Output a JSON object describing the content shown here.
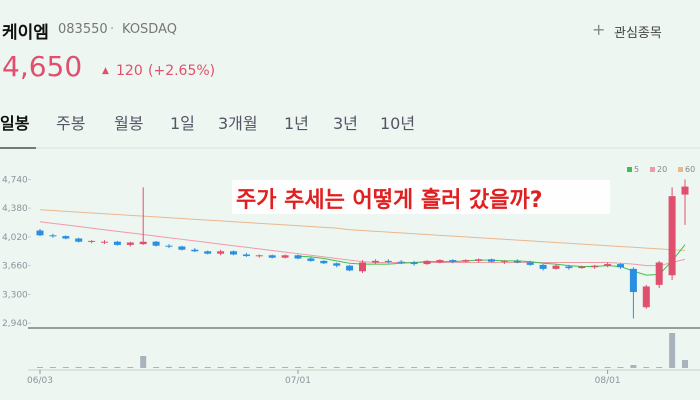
{
  "header": {
    "name": "케이엠",
    "code": "083550",
    "separator": "·",
    "market": "KOSDAQ",
    "watch_button": "관심종목",
    "price": "4,650",
    "change": "120",
    "change_pct": "(+2.65%)"
  },
  "tabs": [
    "일봉",
    "주봉",
    "월봉",
    "1일",
    "3개월",
    "1년",
    "3년",
    "10년"
  ],
  "chart_data": {
    "type": "candlestick",
    "annotation": "주가 추세는 어떻게 흘러 갔을까?",
    "categories": [
      "06/03",
      null,
      null,
      null,
      null,
      null,
      null,
      null,
      null,
      null,
      null,
      null,
      null,
      null,
      null,
      null,
      null,
      null,
      null,
      null,
      "07/01",
      null,
      null,
      null,
      null,
      null,
      null,
      null,
      null,
      null,
      null,
      null,
      null,
      null,
      null,
      null,
      null,
      null,
      null,
      null,
      null,
      null,
      null,
      null,
      "08/01",
      null,
      null,
      null,
      null,
      null,
      null
    ],
    "ohlc": [
      [
        4100,
        4120,
        4030,
        4040
      ],
      [
        4040,
        4060,
        4010,
        4030
      ],
      [
        4030,
        4040,
        3990,
        4000
      ],
      [
        4000,
        4010,
        3950,
        3960
      ],
      [
        3960,
        3980,
        3940,
        3970
      ],
      [
        3950,
        3980,
        3930,
        3960
      ],
      [
        3960,
        3970,
        3910,
        3920
      ],
      [
        3920,
        3960,
        3900,
        3950
      ],
      [
        3930,
        4640,
        3920,
        3960
      ],
      [
        3960,
        3970,
        3900,
        3910
      ],
      [
        3910,
        3930,
        3880,
        3900
      ],
      [
        3900,
        3910,
        3850,
        3860
      ],
      [
        3860,
        3880,
        3830,
        3840
      ],
      [
        3840,
        3850,
        3800,
        3810
      ],
      [
        3810,
        3860,
        3790,
        3840
      ],
      [
        3840,
        3850,
        3790,
        3800
      ],
      [
        3800,
        3820,
        3770,
        3780
      ],
      [
        3780,
        3800,
        3760,
        3790
      ],
      [
        3790,
        3800,
        3750,
        3760
      ],
      [
        3760,
        3800,
        3750,
        3790
      ],
      [
        3790,
        3800,
        3740,
        3750
      ],
      [
        3750,
        3770,
        3710,
        3720
      ],
      [
        3720,
        3730,
        3680,
        3690
      ],
      [
        3690,
        3700,
        3640,
        3660
      ],
      [
        3660,
        3670,
        3590,
        3600
      ],
      [
        3590,
        3730,
        3570,
        3700
      ],
      [
        3700,
        3740,
        3680,
        3720
      ],
      [
        3720,
        3740,
        3690,
        3710
      ],
      [
        3710,
        3730,
        3680,
        3700
      ],
      [
        3700,
        3720,
        3660,
        3680
      ],
      [
        3680,
        3730,
        3670,
        3720
      ],
      [
        3700,
        3740,
        3690,
        3730
      ],
      [
        3730,
        3740,
        3690,
        3710
      ],
      [
        3710,
        3740,
        3700,
        3730
      ],
      [
        3720,
        3750,
        3700,
        3740
      ],
      [
        3740,
        3750,
        3700,
        3710
      ],
      [
        3710,
        3730,
        3680,
        3720
      ],
      [
        3720,
        3740,
        3690,
        3700
      ],
      [
        3700,
        3720,
        3660,
        3670
      ],
      [
        3670,
        3680,
        3600,
        3620
      ],
      [
        3620,
        3680,
        3610,
        3660
      ],
      [
        3650,
        3670,
        3610,
        3630
      ],
      [
        3630,
        3660,
        3620,
        3650
      ],
      [
        3640,
        3670,
        3620,
        3660
      ],
      [
        3660,
        3700,
        3640,
        3680
      ],
      [
        3680,
        3690,
        3620,
        3640
      ],
      [
        3620,
        3640,
        3000,
        3330
      ],
      [
        3140,
        3420,
        3120,
        3400
      ],
      [
        3420,
        3720,
        3380,
        3700
      ],
      [
        3540,
        4640,
        3480,
        4530
      ],
      [
        4550,
        4740,
        4170,
        4650
      ]
    ],
    "up_color": "#e0506e",
    "down_color": "#2a8fe0",
    "series": [
      {
        "name": "5",
        "color": "#3cc24a",
        "values": [
          null,
          null,
          null,
          null,
          null,
          null,
          null,
          null,
          null,
          null,
          null,
          null,
          null,
          null,
          null,
          null,
          null,
          null,
          null,
          null,
          3780,
          3770,
          3750,
          3720,
          3690,
          3680,
          3680,
          3680,
          3690,
          3700,
          3710,
          3710,
          3710,
          3720,
          3730,
          3730,
          3720,
          3720,
          3710,
          3690,
          3680,
          3660,
          3650,
          3650,
          3660,
          3650,
          3592,
          3542,
          3550,
          3720,
          3922
        ]
      },
      {
        "name": "20",
        "color": "#f09aa8",
        "values": [
          4210,
          4190,
          4170,
          4150,
          4130,
          4110,
          4090,
          4070,
          4050,
          4030,
          4010,
          3990,
          3970,
          3950,
          3930,
          3910,
          3890,
          3870,
          3850,
          3830,
          3810,
          3790,
          3770,
          3750,
          3730,
          3710,
          3700,
          3700,
          3700,
          3700,
          3700,
          3700,
          3700,
          3700,
          3700,
          3700,
          3700,
          3700,
          3700,
          3700,
          3700,
          3700,
          3700,
          3700,
          3700,
          3690,
          3680,
          3660,
          3660,
          3700,
          3740
        ]
      },
      {
        "name": "60",
        "color": "#e8b890",
        "values": [
          4360,
          4350,
          4340,
          4330,
          4320,
          4310,
          4300,
          4290,
          4280,
          4270,
          4260,
          4250,
          4240,
          4230,
          4220,
          4210,
          4200,
          4190,
          4180,
          4170,
          4160,
          4150,
          4140,
          4130,
          4110,
          4100,
          4090,
          4080,
          4070,
          4060,
          4050,
          4040,
          4030,
          4020,
          4010,
          4000,
          3990,
          3980,
          3970,
          3960,
          3950,
          3940,
          3930,
          3920,
          3910,
          3900,
          3890,
          3880,
          3870,
          3860,
          3850
        ]
      }
    ],
    "volume": [
      1,
      1,
      1,
      1,
      1,
      1,
      1,
      1,
      12,
      1,
      1,
      1,
      1,
      1,
      1,
      1,
      1,
      1,
      1,
      1,
      1,
      1,
      1,
      1,
      1,
      1,
      1,
      1,
      1,
      1,
      1,
      1,
      1,
      1,
      1,
      1,
      1,
      1,
      1,
      1,
      1,
      1,
      1,
      1,
      1,
      1,
      3,
      1,
      1,
      35,
      8
    ],
    "volume_lim": [
      0,
      40
    ],
    "volume_color": "#a9b3bd",
    "ylim": [
      2880,
      4920
    ],
    "yticks": [
      {
        "value": 2940,
        "label": "2,940"
      },
      {
        "value": 3300,
        "label": "3,300"
      },
      {
        "value": 3660,
        "label": "3,660"
      },
      {
        "value": 4020,
        "label": "4,020"
      },
      {
        "value": 4380,
        "label": "4,380"
      },
      {
        "value": 4740,
        "label": "4,740"
      }
    ]
  }
}
